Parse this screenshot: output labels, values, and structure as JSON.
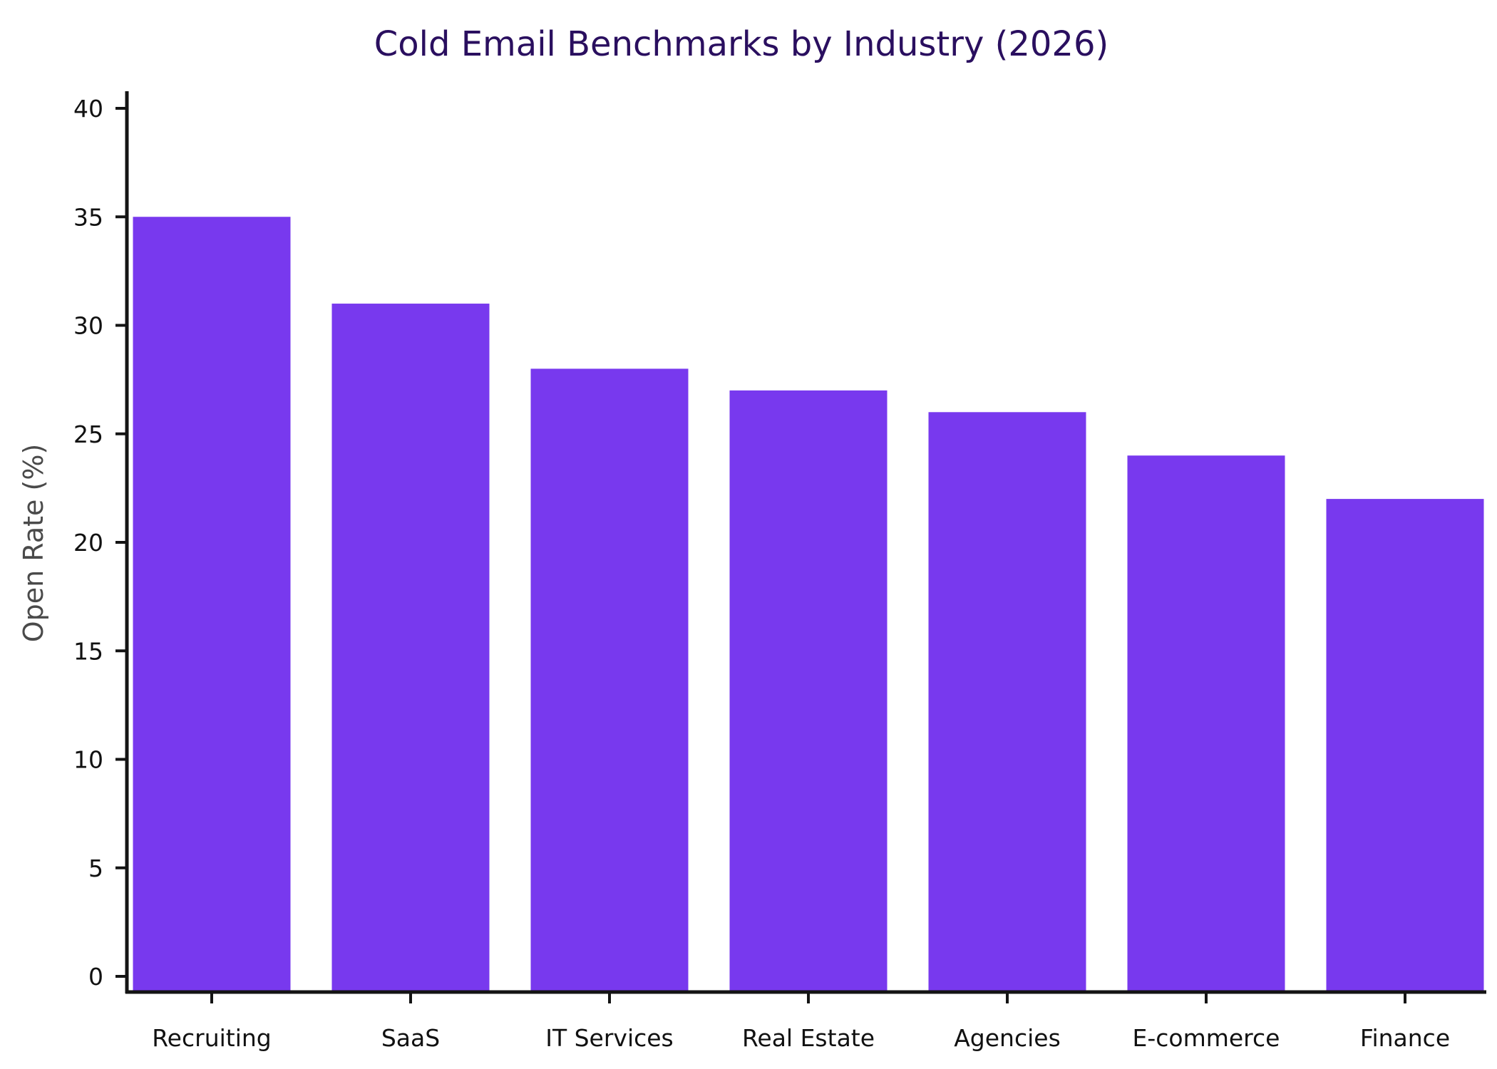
{
  "chart_data": {
    "type": "bar",
    "title": "Cold Email Benchmarks by Industry (2026)",
    "xlabel": "",
    "ylabel": "Open Rate (%)",
    "categories": [
      "Recruiting",
      "SaaS",
      "IT Services",
      "Real Estate",
      "Agencies",
      "E-commerce",
      "Finance"
    ],
    "values": [
      35,
      31,
      28,
      27,
      26,
      24,
      22
    ],
    "ylim": [
      0,
      40
    ],
    "yticks": [
      0,
      5,
      10,
      15,
      20,
      25,
      30,
      35,
      40
    ],
    "grid": false,
    "legend": "none",
    "colors": {
      "bar": "#7839ee",
      "title": "#2a0f5f",
      "axis": "#141414",
      "axis_label": "#4a4a4a",
      "tick_label": "#111111"
    }
  }
}
